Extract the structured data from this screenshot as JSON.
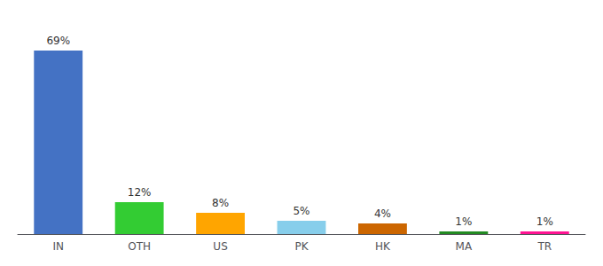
{
  "chart_data": {
    "type": "bar",
    "categories": [
      "IN",
      "OTH",
      "US",
      "PK",
      "HK",
      "MA",
      "TR"
    ],
    "values": [
      69,
      12,
      8,
      5,
      4,
      1,
      1
    ],
    "value_labels": [
      "69%",
      "12%",
      "8%",
      "5%",
      "4%",
      "1%",
      "1%"
    ],
    "data_labels": true,
    "colors": [
      "#4472C4",
      "#33CC33",
      "#FFA500",
      "#87CEEB",
      "#CC6600",
      "#228B22",
      "#FF1493"
    ],
    "ylim": [
      0,
      78
    ],
    "tick_labels": "x",
    "grid": false
  }
}
